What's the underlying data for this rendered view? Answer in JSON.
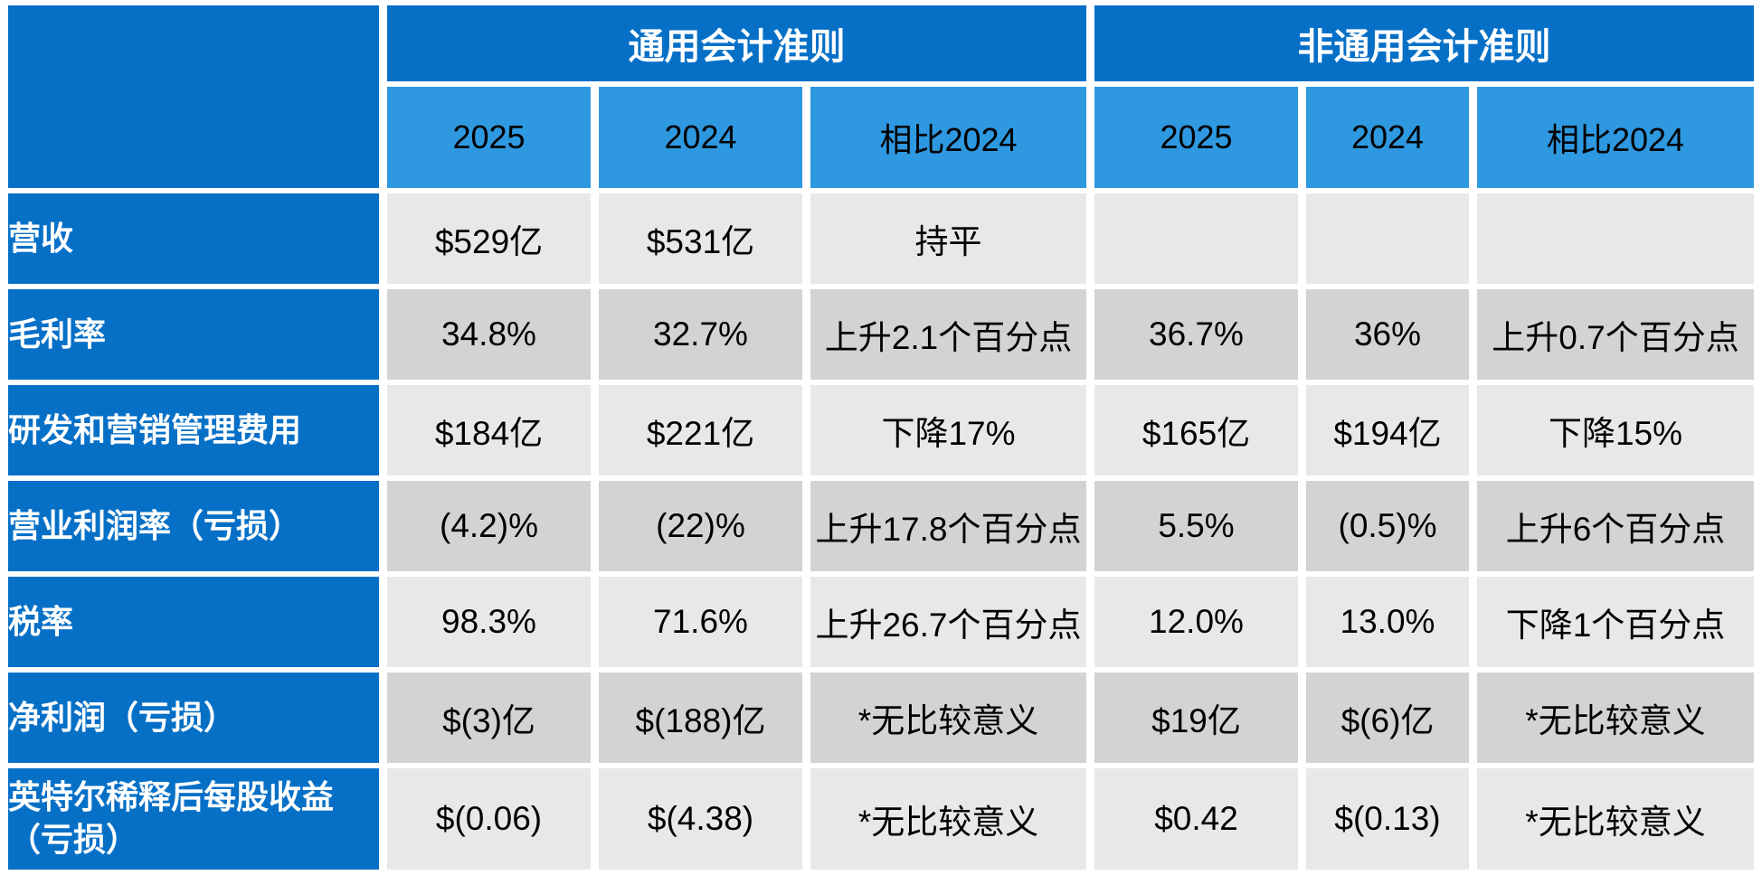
{
  "chart_data": {
    "type": "table",
    "column_groups": [
      {
        "label": "通用会计准则",
        "span": 3
      },
      {
        "label": "非通用会计准则",
        "span": 3
      }
    ],
    "columns": [
      "2025",
      "2024",
      "相比2024",
      "2025",
      "2024",
      "相比2024"
    ],
    "rows": [
      {
        "label": "营收",
        "values": [
          "$529亿",
          "$531亿",
          "持平",
          "",
          "",
          ""
        ]
      },
      {
        "label": "毛利率",
        "values": [
          "34.8%",
          "32.7%",
          "上升2.1个百分点",
          "36.7%",
          "36%",
          "上升0.7个百分点"
        ]
      },
      {
        "label": "研发和营销管理费用",
        "values": [
          "$184亿",
          "$221亿",
          "下降17%",
          "$165亿",
          "$194亿",
          "下降15%"
        ]
      },
      {
        "label": "营业利润率（亏损）",
        "values": [
          "(4.2)%",
          "(22)%",
          "上升17.8个百分点",
          "5.5%",
          "(0.5)%",
          "上升6个百分点"
        ]
      },
      {
        "label": "税率",
        "values": [
          "98.3%",
          "71.6%",
          "上升26.7个百分点",
          "12.0%",
          "13.0%",
          "下降1个百分点"
        ]
      },
      {
        "label": "净利润（亏损）",
        "values": [
          "$(3)亿",
          "$(188)亿",
          "*无比较意义",
          "$19亿",
          "$(6)亿",
          "*无比较意义"
        ]
      },
      {
        "label": "英特尔稀释后每股收益（亏损）",
        "values": [
          "$(0.06)",
          "$(4.38)",
          "*无比较意义",
          "$0.42",
          "$(0.13)",
          "*无比较意义"
        ]
      }
    ]
  },
  "colors": {
    "header_blue": "#0670C7",
    "subheader_blue": "#2E98E0",
    "row_light_gray": "#E8E8E8",
    "row_dark_gray": "#D3D3D3",
    "gridline_white": "#FFFFFF",
    "header_text": "#FFFFFF",
    "cell_text": "#000000"
  }
}
